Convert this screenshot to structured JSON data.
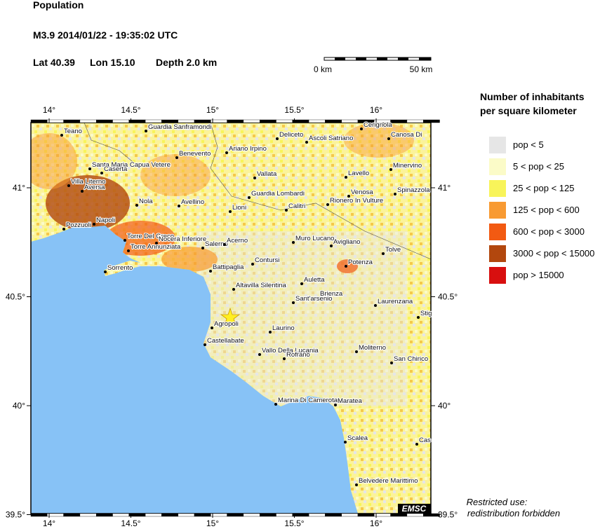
{
  "header": {
    "title": "Population",
    "event": "M3.9  2014/01/22 - 19:35:02 UTC",
    "lat": "Lat 40.39",
    "lon": "Lon  15.10",
    "depth": "Depth  2.0 km"
  },
  "scale_bar": {
    "labels": [
      "0 km",
      "50 km"
    ]
  },
  "legend": {
    "title_lines": [
      "Number of inhabitants",
      "per square kilometer"
    ],
    "items": [
      {
        "label": "pop < 5",
        "color": "#e6e6e6"
      },
      {
        "label": "5 < pop < 25",
        "color": "#fbfbc8"
      },
      {
        "label": "25 < pop < 125",
        "color": "#f8f45a"
      },
      {
        "label": "125 < pop < 600",
        "color": "#f89a32"
      },
      {
        "label": "600 < pop < 3000",
        "color": "#f25a12"
      },
      {
        "label": "3000 < pop < 15000",
        "color": "#b2470e"
      },
      {
        "label": "pop > 15000",
        "color": "#d80f0f"
      }
    ]
  },
  "axes": {
    "lon_ticks": [
      {
        "value": 14,
        "label": "14°"
      },
      {
        "value": 14.5,
        "label": "14.5°"
      },
      {
        "value": 15,
        "label": "15°"
      },
      {
        "value": 15.5,
        "label": "15.5°"
      },
      {
        "value": 16,
        "label": "16°"
      }
    ],
    "lat_ticks": [
      {
        "value": 41,
        "label": "41°"
      },
      {
        "value": 40.5,
        "label": "40.5°"
      },
      {
        "value": 40,
        "label": "40°"
      },
      {
        "value": 39.5,
        "label": "39.5°"
      }
    ]
  },
  "cities": [
    "Teano",
    "Guardia Sanframondi",
    "Deliceto",
    "Ascoli Satriano",
    "Cerignola",
    "Canosa Di",
    "Benevento",
    "Ariano Irpino",
    "Minervino",
    "Santa Maria Capua Vetere",
    "Caserta",
    "Vallata",
    "Lavello",
    "Villa Literno",
    "Aversa",
    "Guardia Lombardi",
    "Venosa",
    "Spinazzola",
    "Nola",
    "Avellino",
    "Calitri",
    "Rionero In Vulture",
    "Lioni",
    "Napoli",
    "Pozzuoli",
    "Torre Del Greco",
    "Nocera Inferiore",
    "Salerno",
    "Acerno",
    "Muro Lucano",
    "Avigliano",
    "Torre Annunziata",
    "Tolve",
    "Sorrento",
    "Contursi",
    "Battipaglia",
    "Potenza",
    "Altavilla Silentina",
    "Auletta",
    "Brienza",
    "Sant'arsenio",
    "Laurenzana",
    "Stig",
    "Agropoli",
    "Laurino",
    "Castellabate",
    "Vallo Della Lucania",
    "Moliterno",
    "Rofrano",
    "San Chirico",
    "Marina Di Camerota",
    "Maratea",
    "Scalea",
    "Cas",
    "Belvedere Marittimo"
  ],
  "badge": "EMSC",
  "note": [
    "Restricted use:",
    "redistribution forbidden"
  ]
}
